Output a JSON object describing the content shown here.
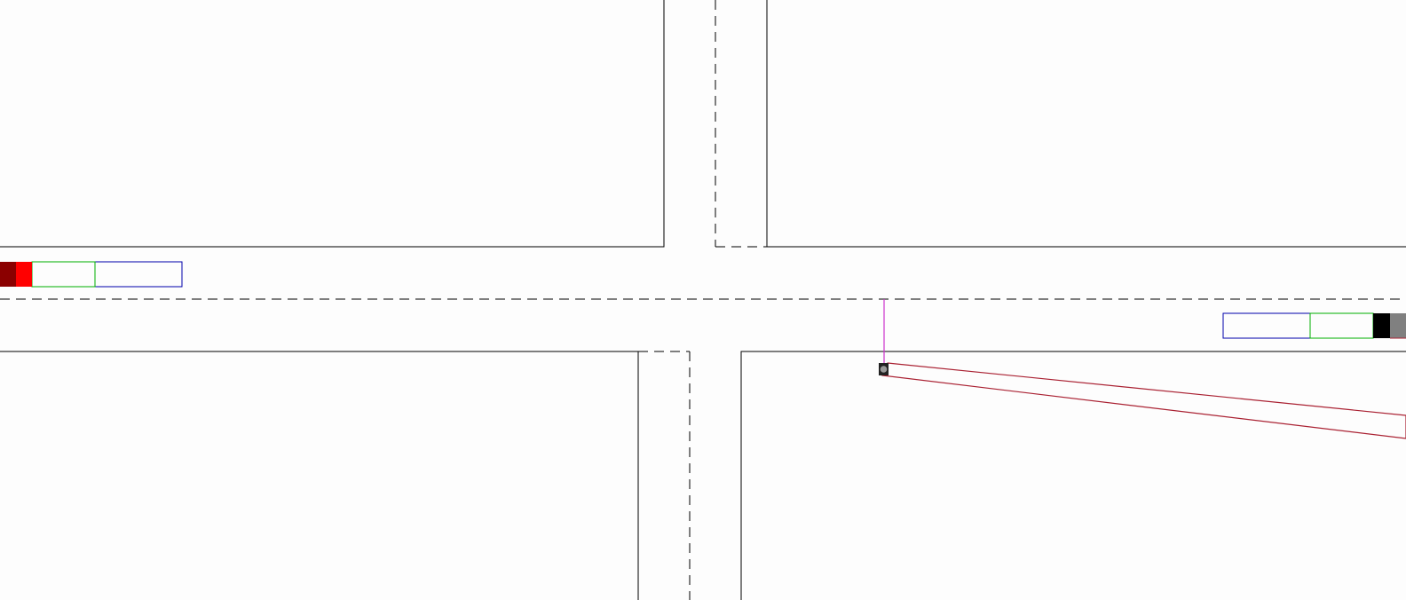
{
  "scene": {
    "type": "traffic-intersection-simulation",
    "background_color": "#fdfdfd",
    "colors": {
      "curb": "#000000",
      "lane_divider": "#000000",
      "vehicle_west_marker_dark": "#8b0000",
      "vehicle_west_marker": "#ff0000",
      "vehicle_east_marker": "#000000",
      "vehicle_east_marker_gray": "#808080",
      "sensor_zone_near": "#00b000",
      "sensor_zone_far": "#0000aa",
      "detection_beam": "#aa2233",
      "sensor_link": "#cc33cc",
      "sensor_body": "#222222",
      "sensor_lens": "#999999"
    },
    "icons": {
      "roadside_sensor": "traffic-camera-icon"
    }
  }
}
